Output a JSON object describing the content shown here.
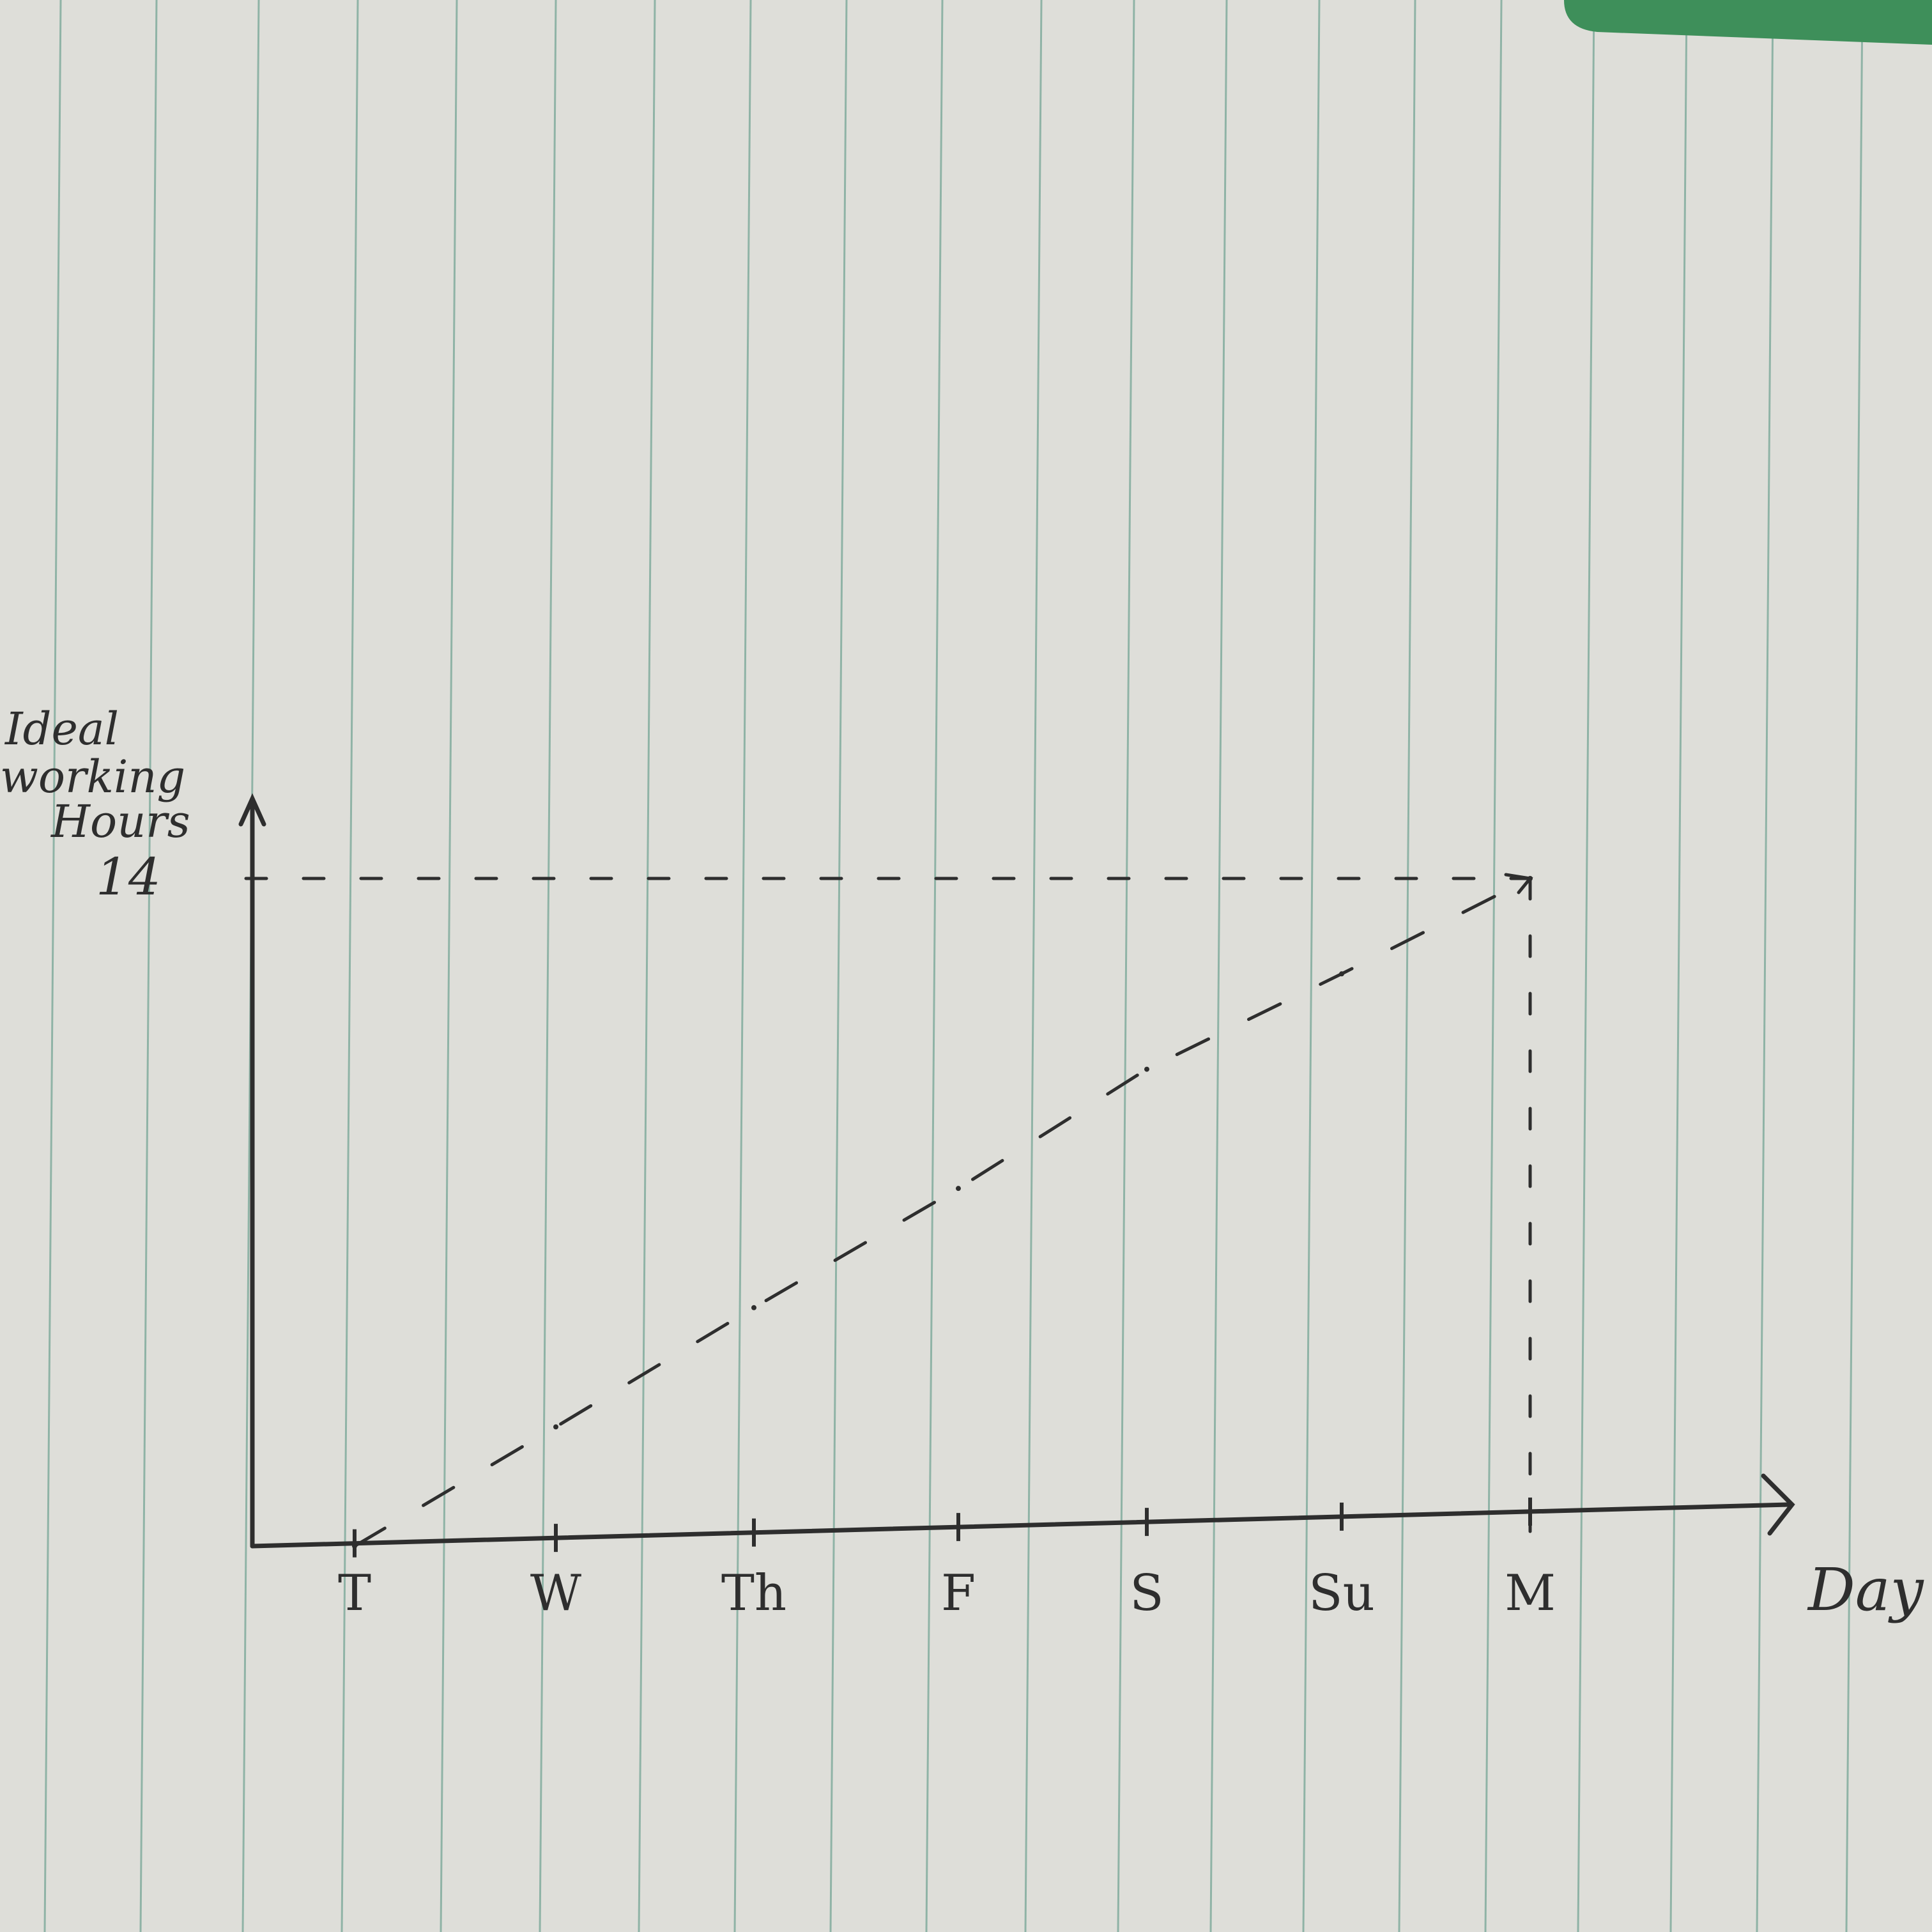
{
  "chart_data": {
    "type": "line",
    "xlabel": "Day",
    "ylabel_lines": [
      "Ideal",
      "working",
      "Hours"
    ],
    "y_tick_labels": [
      "14"
    ],
    "categories": [
      "T",
      "W",
      "Th",
      "F",
      "S",
      "Su",
      "M"
    ],
    "ylim": [
      0,
      14
    ],
    "grid": false,
    "legend": "none",
    "series": [
      {
        "style": "dashed",
        "x": [
          "T",
          "W",
          "Th",
          "F",
          "S",
          "Su",
          "M"
        ],
        "y": [
          0,
          2.5,
          5,
          7.5,
          10,
          12,
          14
        ]
      }
    ],
    "reference_lines": [
      {
        "orientation": "horizontal",
        "y": 14,
        "style": "dashed",
        "to": "M"
      },
      {
        "orientation": "vertical",
        "x": "M",
        "style": "dashed"
      }
    ]
  },
  "paper": {
    "background": "#deded9",
    "rule_color": "#8fb3a6",
    "ink_color": "#2e2e2e",
    "tab_color": "#3e8f5a"
  }
}
